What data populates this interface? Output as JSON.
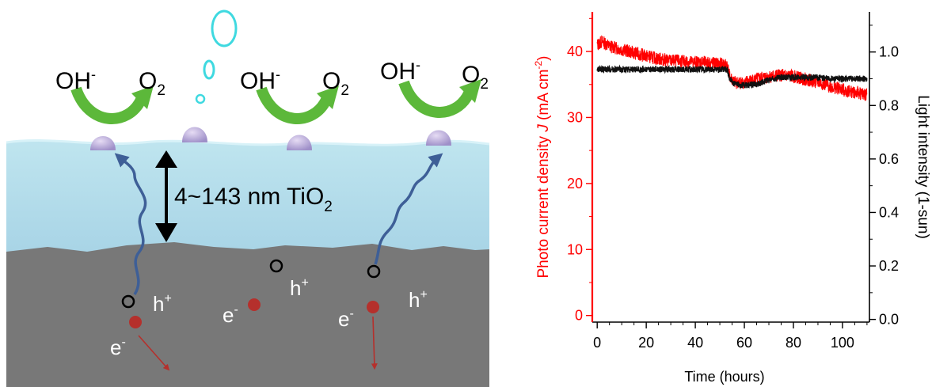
{
  "schematic": {
    "ions": {
      "reactant": "OH",
      "reactant_charge": "-",
      "product": "O",
      "product_subscript": "2"
    },
    "thickness_label": {
      "prefix": "4~143 nm TiO",
      "subscript": "2"
    },
    "carriers": {
      "hole": "h",
      "hole_charge": "+",
      "electron": "e",
      "electron_charge": "-"
    }
  },
  "colors": {
    "photocurrent": "#ff0000",
    "light": "#111111",
    "tio2_layer": "#aed8e6",
    "substrate": "#787878",
    "arrow_green": "#5cb83a",
    "bubble": "#3fd9e0",
    "path_blue": "#3e5f97",
    "electron": "#b5302c"
  },
  "chart_data": {
    "type": "line",
    "xlabel": "Time (hours)",
    "ylabel_left": {
      "pre": "Photo current density ",
      "italic": "J",
      "post": " (mA cm",
      "sup": "-2",
      "close": ")"
    },
    "ylabel_right": "Light intensity (1-sun)",
    "x_ticks": [
      0,
      20,
      40,
      60,
      80,
      100
    ],
    "y_left_ticks": [
      0,
      10,
      20,
      30,
      40
    ],
    "y_right_ticks": [
      "0.0",
      "0.2",
      "0.4",
      "0.6",
      "0.8",
      "1.0"
    ],
    "xlim": [
      -2,
      111
    ],
    "ylim_left": [
      -1,
      46
    ],
    "ylim_right": [
      -0.01,
      1.15
    ],
    "series": [
      {
        "axis": "left",
        "color": "#ff0000",
        "noise": 1.0,
        "x": [
          0,
          2,
          5,
          10,
          15,
          20,
          25,
          30,
          35,
          40,
          45,
          50,
          53,
          54,
          56,
          60,
          65,
          70,
          75,
          80,
          85,
          90,
          95,
          100,
          105,
          110
        ],
        "y": [
          41.0,
          41.5,
          40.8,
          40.3,
          39.8,
          39.3,
          38.9,
          38.6,
          38.5,
          38.4,
          38.3,
          38.1,
          38.0,
          36.2,
          35.3,
          35.3,
          35.8,
          36.2,
          36.4,
          36.2,
          35.8,
          35.3,
          34.7,
          34.2,
          33.8,
          33.4
        ]
      },
      {
        "axis": "right",
        "color": "#111111",
        "noise": 0.012,
        "x": [
          0,
          5,
          10,
          20,
          30,
          40,
          50,
          53,
          54,
          56,
          60,
          65,
          70,
          75,
          80,
          85,
          90,
          95,
          100,
          105,
          110
        ],
        "y": [
          0.935,
          0.935,
          0.935,
          0.935,
          0.935,
          0.935,
          0.935,
          0.935,
          0.9,
          0.88,
          0.875,
          0.88,
          0.895,
          0.905,
          0.905,
          0.905,
          0.905,
          0.9,
          0.9,
          0.9,
          0.9
        ]
      }
    ]
  }
}
